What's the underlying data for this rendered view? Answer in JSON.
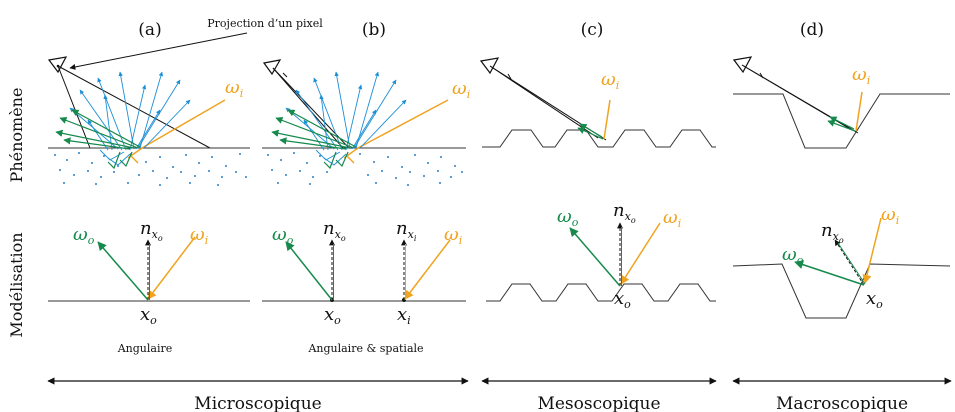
{
  "panels": {
    "a": "(a)",
    "b": "(b)",
    "c": "(c)",
    "d": "(d)"
  },
  "annotation": "Projection d’un pixel",
  "row_labels": {
    "phenomenon": "Phénomène",
    "modelling": "Modélisation"
  },
  "captions": {
    "a": "Angulaire",
    "b": "Angulaire & spatiale"
  },
  "scales": {
    "micro": "Microscopique",
    "meso": "Mesoscopique",
    "macro": "Macroscopique"
  },
  "symbols": {
    "omega": "ω",
    "i": "i",
    "o": "o",
    "n": "n",
    "x": "x"
  },
  "colors": {
    "incident": "#f0a31f",
    "outgoing": "#168a4c",
    "scatter": "#1a8fd6",
    "particles": "#2b7fc4",
    "line": "#111111",
    "surface": "#333333"
  }
}
